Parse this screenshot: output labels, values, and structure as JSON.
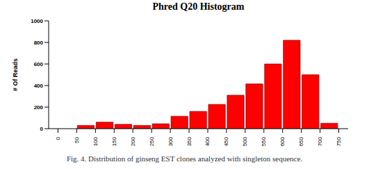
{
  "chart_data": {
    "type": "histogram",
    "title": "Phred Q20 Histogram",
    "y_label": "# Of Reads",
    "caption": "Fig. 4. Distribution of ginseng EST clones analyzed with singleton sequence.",
    "bins": [
      50,
      100,
      150,
      200,
      250,
      300,
      350,
      400,
      450,
      500,
      550,
      600,
      650,
      700,
      750
    ],
    "values": [
      30,
      60,
      40,
      30,
      45,
      115,
      160,
      225,
      310,
      415,
      600,
      820,
      500,
      50
    ],
    "color": "#ff0000",
    "xlim": [
      -25,
      775
    ],
    "xticks": [
      0,
      50,
      100,
      150,
      200,
      250,
      300,
      350,
      400,
      450,
      500,
      550,
      600,
      650,
      700,
      750
    ],
    "ylim": [
      0,
      1000
    ],
    "yticks": [
      0,
      200,
      400,
      600,
      800,
      1000
    ],
    "grid": false
  }
}
